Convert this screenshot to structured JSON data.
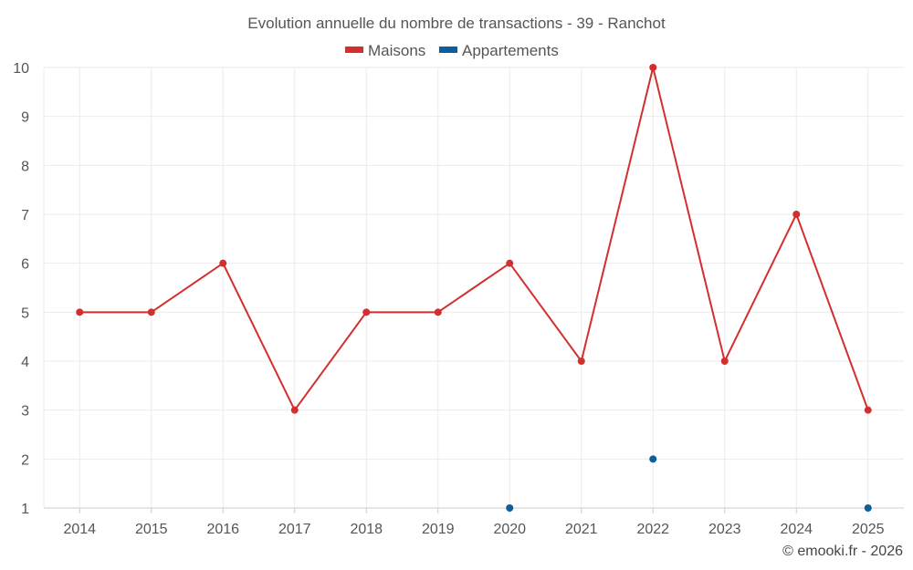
{
  "chart_data": {
    "type": "line",
    "title": "Evolution annuelle du nombre de transactions - 39 - Ranchot",
    "categories": [
      "2014",
      "2015",
      "2016",
      "2017",
      "2018",
      "2019",
      "2020",
      "2021",
      "2022",
      "2023",
      "2024",
      "2025"
    ],
    "ylim": [
      1,
      10
    ],
    "yticks": [
      1,
      2,
      3,
      4,
      5,
      6,
      7,
      8,
      9,
      10
    ],
    "grid": true,
    "legend_position": "top-center",
    "series": [
      {
        "name": "Maisons",
        "color": "#d32f2f",
        "values": [
          5,
          5,
          6,
          3,
          5,
          5,
          6,
          4,
          10,
          4,
          7,
          3
        ]
      },
      {
        "name": "Appartements",
        "color": "#0d5e9a",
        "values": [
          null,
          null,
          null,
          null,
          null,
          null,
          1,
          null,
          2,
          null,
          null,
          1
        ]
      }
    ]
  },
  "credit": "© emooki.fr - 2026"
}
